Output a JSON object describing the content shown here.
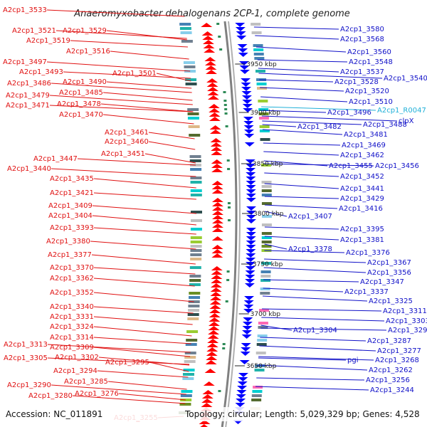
{
  "title": "Anaeromyxobacter dehalogenans 2CP-1, complete genome",
  "footer": {
    "accession": "Accession: NC_011891",
    "stats": "Topology: circular; Length: 5,029,329 bp; Genes: 4,528"
  },
  "colors": {
    "left_label": "#e01010",
    "right_label": "#1010c8",
    "rna_label": "#20b0d8",
    "forward_strand": "#ff0000",
    "reverse_strand": "#0000ff",
    "backbone": "#808080"
  },
  "scale_marks": [
    {
      "label": "3950 kbp"
    },
    {
      "label": "3900 kbp"
    },
    {
      "label": "3850 kbp"
    },
    {
      "label": "3800 kbp"
    },
    {
      "label": "3750 kbp"
    },
    {
      "label": "3700 kbp"
    },
    {
      "label": "3650 kbp"
    }
  ],
  "left_labels": [
    "A2cp1_3533",
    "A2cp1_3521",
    "A2cp1_3529",
    "A2cp1_3519",
    "A2cp1_3516",
    "A2cp1_3497",
    "A2cp1_3493",
    "A2cp1_3501",
    "A2cp1_3486",
    "A2cp1_3490",
    "A2cp1_3485",
    "A2cp1_3479",
    "A2cp1_3471",
    "A2cp1_3478",
    "A2cp1_3470",
    "A2cp1_3461",
    "A2cp1_3460",
    "A2cp1_3451",
    "A2cp1_3447",
    "A2cp1_3440",
    "A2cp1_3435",
    "A2cp1_3421",
    "A2cp1_3409",
    "A2cp1_3404",
    "A2cp1_3393",
    "A2cp1_3380",
    "A2cp1_3377",
    "A2cp1_3370",
    "A2cp1_3362",
    "A2cp1_3352",
    "A2cp1_3340",
    "A2cp1_3331",
    "A2cp1_3324",
    "A2cp1_3314",
    "A2cp1_3313",
    "A2cp1_3309",
    "A2cp1_3305",
    "A2cp1_3302",
    "A2cp1_3295",
    "A2cp1_3294",
    "A2cp1_3285",
    "A2cp1_3290",
    "A2cp1_3276",
    "A2cp1_3280",
    "A2cp1_3255"
  ],
  "right_labels": [
    "A2cp1_3580",
    "A2cp1_3568",
    "A2cp1_3560",
    "A2cp1_3548",
    "A2cp1_3537",
    "A2cp1_3540",
    "A2cp1_3528",
    "A2cp1_3520",
    "A2cp1_3510",
    "A2cp1_3496",
    "A2cp1_R0047",
    "clpX",
    "A2cp1_3482",
    "A2cp1_3488",
    "A2cp1_3481",
    "A2cp1_3469",
    "A2cp1_3462",
    "A2cp1_3455",
    "A2cp1_3456",
    "A2cp1_3452",
    "A2cp1_3441",
    "A2cp1_3429",
    "A2cp1_3416",
    "A2cp1_3407",
    "A2cp1_3395",
    "A2cp1_3381",
    "A2cp1_3378",
    "A2cp1_3376",
    "A2cp1_3367",
    "A2cp1_3356",
    "A2cp1_3347",
    "A2cp1_3337",
    "A2cp1_3325",
    "A2cp1_3311",
    "A2cp1_3303",
    "A2cp1_3304",
    "A2cp1_3296",
    "A2cp1_3287",
    "A2cp1_3277",
    "pgi",
    "A2cp1_3268",
    "A2cp1_3262",
    "A2cp1_3256",
    "A2cp1_3244"
  ]
}
